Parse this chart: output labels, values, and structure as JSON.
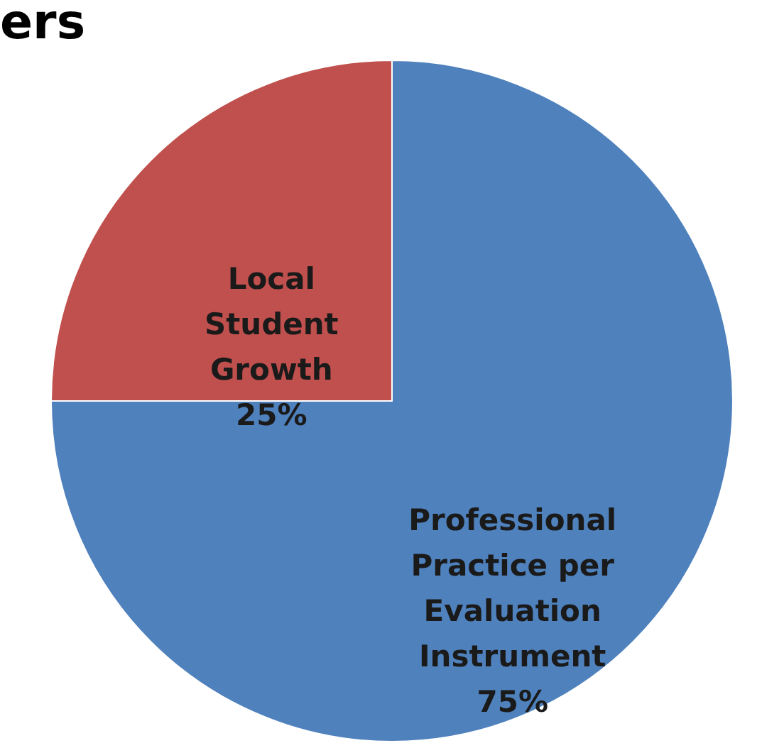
{
  "chart_data": {
    "type": "pie",
    "title": "ers",
    "categories": [
      "Professional Practice per Evaluation Instrument",
      "Local Student Growth"
    ],
    "values": [
      75,
      25
    ],
    "colors": [
      "#4f81bd",
      "#c0504d"
    ],
    "value_labels": [
      "75%",
      "25%"
    ],
    "legend": false
  }
}
